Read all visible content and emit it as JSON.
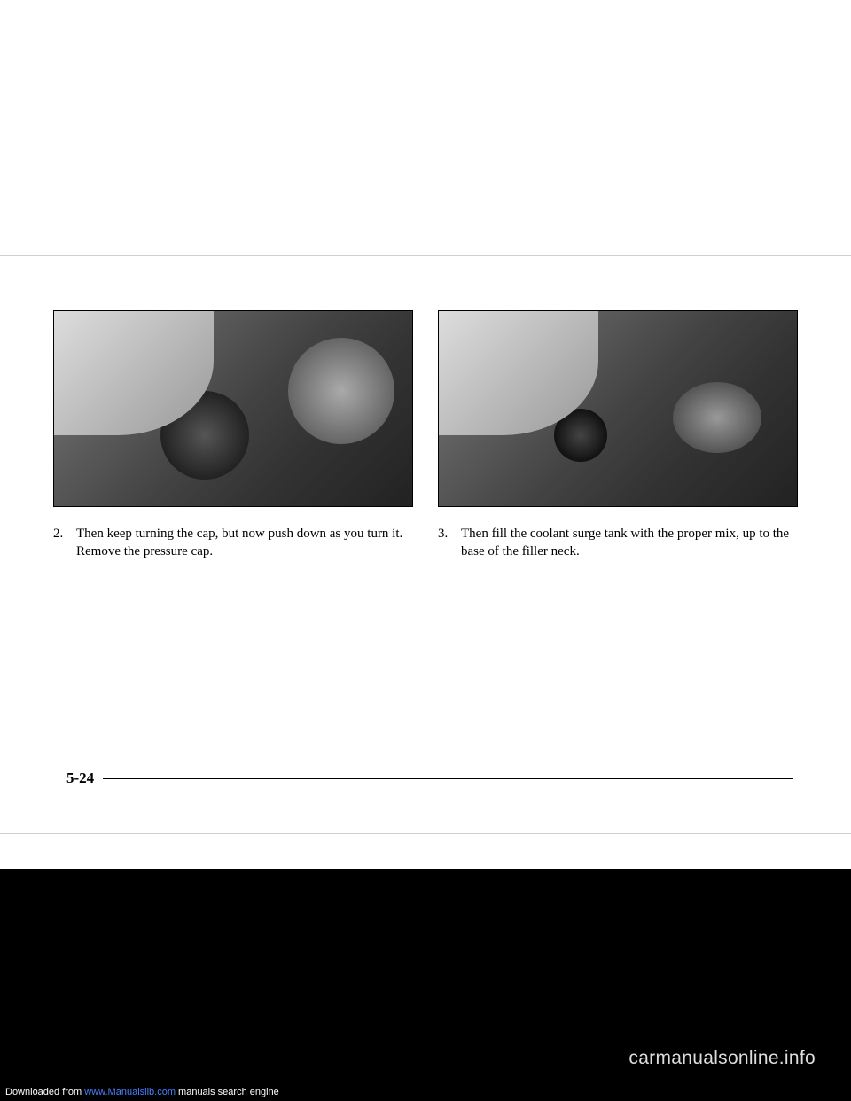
{
  "page": {
    "number": "5-24"
  },
  "steps": [
    {
      "num": "2.",
      "text": "Then keep turning the cap, but now push down as you turn it. Remove the pressure cap."
    },
    {
      "num": "3.",
      "text": "Then fill the coolant surge tank with the proper mix, up to the base of the filler neck."
    }
  ],
  "watermarks": {
    "right": "carmanualsonline.info",
    "left_prefix": "Downloaded from ",
    "left_link": "www.Manualslib.com",
    "left_suffix": " manuals search engine"
  }
}
